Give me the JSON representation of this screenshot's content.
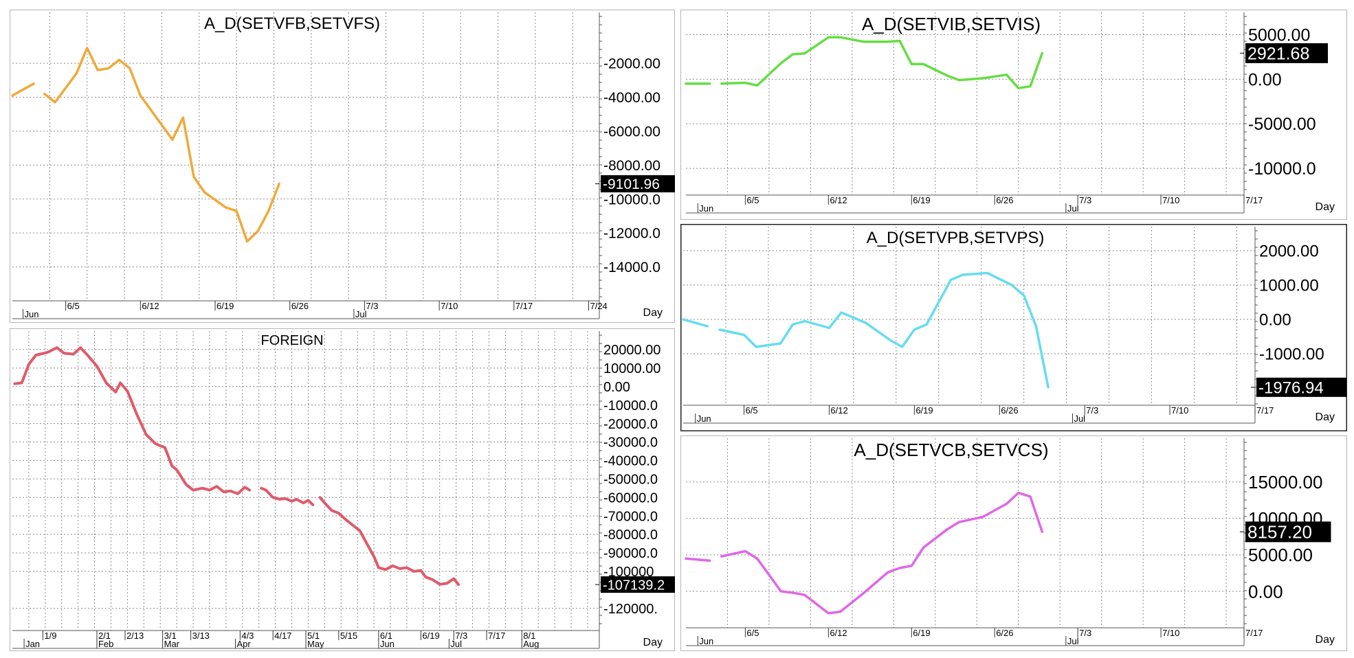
{
  "chart_data": [
    {
      "type": "line",
      "title": "A_D(SETVFB,SETVFS)",
      "color": "#f0a93a",
      "ylim": [
        -16000,
        1000
      ],
      "y_ticks": [
        -2000,
        -4000,
        -6000,
        -8000,
        -10000,
        -12000,
        -14000
      ],
      "y_tick_labels": [
        "-2000.00",
        "-4000.00",
        "-6000.00",
        "-8000.00",
        "-10000.0",
        "-12000.0",
        "-14000.0"
      ],
      "x_tick_labels": [
        "6/5",
        "6/12",
        "6/19",
        "6/26",
        "7/3",
        "7/10",
        "7/17",
        "7/24"
      ],
      "x_period_labels": [
        {
          "text": "Jun",
          "x": 0
        },
        {
          "text": "Jul",
          "x": 31
        }
      ],
      "x_unit": "Day",
      "xlim": [
        -1,
        54
      ],
      "last_value": "-9101.96",
      "last_value_y": -9101.96,
      "series": [
        {
          "values": [
            [
              -1,
              -3900
            ],
            [
              1,
              -3200
            ]
          ]
        },
        {
          "values": [
            [
              2,
              -3800
            ],
            [
              3,
              -4300
            ],
            [
              5,
              -2600
            ],
            [
              6,
              -1100
            ],
            [
              7,
              -2400
            ],
            [
              8,
              -2300
            ],
            [
              9,
              -1800
            ],
            [
              10,
              -2300
            ],
            [
              11,
              -3900
            ],
            [
              14,
              -6500
            ],
            [
              15,
              -5200
            ],
            [
              16,
              -8700
            ],
            [
              17,
              -9600
            ],
            [
              19,
              -10500
            ],
            [
              20,
              -10700
            ],
            [
              21,
              -12500
            ],
            [
              22,
              -11900
            ],
            [
              23,
              -10700
            ],
            [
              24,
              -9101.96
            ]
          ]
        }
      ]
    },
    {
      "type": "line",
      "title": "FOREIGN",
      "color": "#e05a6a",
      "ylim": [
        -132000,
        30000
      ],
      "y_ticks": [
        20000,
        10000,
        0,
        -10000,
        -20000,
        -30000,
        -40000,
        -50000,
        -60000,
        -70000,
        -80000,
        -90000,
        -100000,
        -120000
      ],
      "y_tick_labels": [
        "20000.00",
        "10000.00",
        "0.00",
        "-10000.0",
        "-20000.0",
        "-30000.0",
        "-40000.0",
        "-50000.0",
        "-60000.0",
        "-70000.0",
        "-80000.0",
        "-90000.0",
        "-100000",
        "-120000."
      ],
      "x_tick_labels": [
        "1/9",
        "2/1",
        "2/13",
        "3/1",
        "3/13",
        "4/3",
        "4/17",
        "5/1",
        "5/15",
        "6/1",
        "6/19",
        "7/3",
        "7/17",
        "8/1"
      ],
      "x_period_labels": [
        {
          "text": "Jan",
          "x": 0
        },
        {
          "text": "Feb",
          "x": 31
        },
        {
          "text": "Mar",
          "x": 59
        },
        {
          "text": "Apr",
          "x": 90
        },
        {
          "text": "May",
          "x": 120
        },
        {
          "text": "Jun",
          "x": 151
        },
        {
          "text": "Jul",
          "x": 181
        },
        {
          "text": "Aug",
          "x": 212
        }
      ],
      "x_unit": "Day",
      "xlim": [
        -5,
        245
      ],
      "last_value": "-107139.2",
      "last_value_y": -107139.2,
      "series": [
        {
          "values": [
            [
              -4,
              1500
            ],
            [
              -1,
              2000
            ],
            [
              2,
              12000
            ],
            [
              5,
              17000
            ],
            [
              10,
              18500
            ],
            [
              14,
              21000
            ],
            [
              17,
              18000
            ],
            [
              21,
              17500
            ],
            [
              24,
              21000
            ],
            [
              27,
              17000
            ],
            [
              31,
              11000
            ],
            [
              35,
              2000
            ],
            [
              39,
              -3000
            ],
            [
              41,
              2000
            ],
            [
              44,
              -2500
            ],
            [
              48,
              -15000
            ],
            [
              52,
              -26000
            ],
            [
              56,
              -31000
            ],
            [
              60,
              -33000
            ],
            [
              63,
              -43000
            ],
            [
              65,
              -45000
            ],
            [
              69,
              -53000
            ],
            [
              72,
              -56000
            ],
            [
              76,
              -55000
            ],
            [
              79,
              -56000
            ],
            [
              82,
              -54000
            ],
            [
              85,
              -57000
            ],
            [
              88,
              -56500
            ],
            [
              91,
              -58000
            ],
            [
              94,
              -54500
            ],
            [
              96,
              -56000
            ]
          ]
        },
        {
          "values": [
            [
              101,
              -55000
            ],
            [
              103,
              -56000
            ],
            [
              106,
              -60000
            ],
            [
              109,
              -61000
            ],
            [
              111,
              -60500
            ],
            [
              114,
              -62000
            ],
            [
              116,
              -61000
            ],
            [
              119,
              -63000
            ],
            [
              121,
              -61500
            ],
            [
              123,
              -64000
            ]
          ]
        },
        {
          "values": [
            [
              126,
              -60000
            ],
            [
              128,
              -63000
            ],
            [
              131,
              -67000
            ],
            [
              134,
              -68500
            ],
            [
              137,
              -72000
            ],
            [
              140,
              -75000
            ],
            [
              143,
              -78000
            ],
            [
              146,
              -85000
            ],
            [
              149,
              -92000
            ],
            [
              151,
              -98000
            ],
            [
              154,
              -99000
            ],
            [
              157,
              -97000
            ],
            [
              160,
              -98500
            ],
            [
              163,
              -98000
            ],
            [
              166,
              -100000
            ],
            [
              169,
              -99500
            ],
            [
              171,
              -103000
            ],
            [
              174,
              -104500
            ],
            [
              177,
              -107000
            ],
            [
              180,
              -106500
            ],
            [
              183,
              -104000
            ],
            [
              185,
              -107139.2
            ]
          ]
        }
      ]
    },
    {
      "type": "line",
      "title": "A_D(SETVIB,SETVIS)",
      "color": "#66dd44",
      "ylim": [
        -13000,
        7500
      ],
      "y_ticks": [
        5000,
        0,
        -5000,
        -10000
      ],
      "y_tick_labels": [
        "5000.00",
        "0.00",
        "-5000.00",
        "-10000.0"
      ],
      "x_tick_labels": [
        "6/5",
        "6/12",
        "6/19",
        "6/26",
        "7/3",
        "7/10",
        "7/17"
      ],
      "x_period_labels": [
        {
          "text": "Jun",
          "x": 0
        },
        {
          "text": "Jul",
          "x": 31
        }
      ],
      "x_unit": "Day",
      "xlim": [
        -1,
        46
      ],
      "last_value": "2921.68",
      "last_value_y": 2921.68,
      "series": [
        {
          "values": [
            [
              -1,
              -500
            ],
            [
              1,
              -500
            ]
          ]
        },
        {
          "values": [
            [
              2,
              -500
            ],
            [
              4,
              -400
            ],
            [
              5,
              -700
            ],
            [
              7,
              1800
            ],
            [
              8,
              2800
            ],
            [
              9,
              2900
            ],
            [
              11,
              4700
            ],
            [
              12,
              4700
            ],
            [
              14,
              4200
            ],
            [
              16,
              4200
            ],
            [
              17,
              4300
            ],
            [
              18,
              1700
            ],
            [
              19,
              1700
            ],
            [
              21,
              400
            ],
            [
              22,
              -100
            ],
            [
              24,
              100
            ],
            [
              26,
              500
            ],
            [
              27,
              -1000
            ],
            [
              28,
              -800
            ],
            [
              29,
              2921.68
            ]
          ]
        }
      ]
    },
    {
      "type": "line",
      "title": "A_D(SETVPB,SETVPS)",
      "color": "#66dcf0",
      "ylim": [
        -2500,
        2700
      ],
      "y_ticks": [
        2000,
        1000,
        0,
        -1000
      ],
      "y_tick_labels": [
        "2000.00",
        "1000.00",
        "0.00",
        "-1000.00"
      ],
      "x_tick_labels": [
        "6/5",
        "6/12",
        "6/19",
        "6/26",
        "7/3",
        "7/10",
        "7/17"
      ],
      "x_period_labels": [
        {
          "text": "Jun",
          "x": 0
        },
        {
          "text": "Jul",
          "x": 31
        }
      ],
      "x_unit": "Day",
      "xlim": [
        -1,
        46
      ],
      "last_value": "-1976.94",
      "last_value_y": -1976.94,
      "series": [
        {
          "values": [
            [
              -1,
              0
            ],
            [
              1,
              -200
            ]
          ]
        },
        {
          "values": [
            [
              2,
              -300
            ],
            [
              4,
              -450
            ],
            [
              5,
              -800
            ],
            [
              7,
              -700
            ],
            [
              8,
              -150
            ],
            [
              9,
              -50
            ],
            [
              11,
              -250
            ],
            [
              12,
              200
            ],
            [
              14,
              -100
            ],
            [
              16,
              -600
            ],
            [
              17,
              -800
            ],
            [
              18,
              -300
            ],
            [
              19,
              -150
            ],
            [
              21,
              1150
            ],
            [
              22,
              1300
            ],
            [
              24,
              1350
            ],
            [
              26,
              1000
            ],
            [
              27,
              700
            ],
            [
              28,
              -200
            ],
            [
              29,
              -1976.94
            ]
          ]
        }
      ]
    },
    {
      "type": "line",
      "title": "A_D(SETVCB,SETVCS)",
      "color": "#e066e8",
      "ylim": [
        -5000,
        21000
      ],
      "y_ticks": [
        15000,
        10000,
        5000,
        0
      ],
      "y_tick_labels": [
        "15000.00",
        "10000.00",
        "5000.00",
        "0.00"
      ],
      "x_tick_labels": [
        "6/5",
        "6/12",
        "6/19",
        "6/26",
        "7/3",
        "7/10",
        "7/17"
      ],
      "x_period_labels": [
        {
          "text": "Jun",
          "x": 0
        },
        {
          "text": "Jul",
          "x": 31
        }
      ],
      "x_unit": "Day",
      "xlim": [
        -1,
        46
      ],
      "last_value": "8157.20",
      "last_value_y": 8157.2,
      "series": [
        {
          "values": [
            [
              -1,
              4500
            ],
            [
              1,
              4200
            ]
          ]
        },
        {
          "values": [
            [
              2,
              4800
            ],
            [
              4,
              5500
            ],
            [
              5,
              4500
            ],
            [
              7,
              0
            ],
            [
              8,
              -200
            ],
            [
              9,
              -500
            ],
            [
              11,
              -3000
            ],
            [
              12,
              -2800
            ],
            [
              14,
              -200
            ],
            [
              16,
              2600
            ],
            [
              17,
              3200
            ],
            [
              18,
              3500
            ],
            [
              19,
              6000
            ],
            [
              21,
              8500
            ],
            [
              22,
              9500
            ],
            [
              24,
              10200
            ],
            [
              26,
              12000
            ],
            [
              27,
              13500
            ],
            [
              28,
              13000
            ],
            [
              29,
              8157.2
            ]
          ]
        }
      ]
    }
  ]
}
